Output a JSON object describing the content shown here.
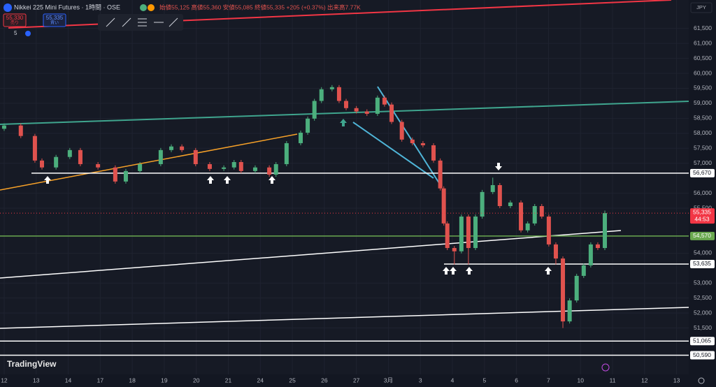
{
  "header": {
    "symbol": "Nikkei 225 Mini Futures · 1時間 · OSE",
    "ohlc": "始値55,125 高値55,360 安値55,085 終値55,335 +205 (+0.37%) 出来高7.77K",
    "sell_price": "55,330",
    "sell_label": "売り",
    "buy_price": "55,335",
    "buy_label": "買い",
    "indicator_count": "5",
    "currency": "JPY",
    "brand": "TradingView"
  },
  "chart_data": {
    "type": "candlestick",
    "up_color": "#4caf7d",
    "down_color": "#e0524e",
    "x": [
      0,
      0.52,
      0.96,
      1.18,
      1.62,
      2.05,
      2.38,
      2.93,
      3.47,
      3.8,
      4.24,
      4.89,
      5.22,
      5.55,
      5.98,
      6.42,
      6.86,
      7.18,
      7.4,
      7.84,
      8.28,
      8.49,
      8.82,
      9.26,
      9.48,
      9.69,
      9.91,
      10.24,
      10.46,
      10.68,
      11,
      11.33,
      11.66,
      11.88,
      12.1,
      12.42,
      12.75,
      13.08,
      13.41,
      13.62,
      13.73,
      13.84,
      14.06,
      14.28,
      14.5,
      14.72,
      14.93,
      15.26,
      15.48,
      15.81,
      16.14,
      16.35,
      16.57,
      16.79,
      17.01,
      17.23,
      17.45,
      17.66,
      17.88,
      18.1,
      18.32,
      18.54,
      18.76
    ],
    "open": [
      58150,
      58260,
      57910,
      57090,
      56860,
      57210,
      57440,
      56970,
      56860,
      56390,
      56740,
      56970,
      57440,
      57560,
      57440,
      56970,
      56810,
      56860,
      57040,
      56740,
      56860,
      56620,
      56970,
      57670,
      58020,
      58490,
      59080,
      59470,
      59540,
      59080,
      58840,
      58730,
      58650,
      59190,
      58960,
      58380,
      57790,
      57670,
      57600,
      57090,
      56160,
      54990,
      54170,
      54060,
      55220,
      54170,
      55220,
      56040,
      56270,
      55570,
      55690,
      54760,
      54990,
      55570,
      55220,
      54290,
      53820,
      51720,
      52420,
      53240,
      53590,
      54290,
      54170
    ],
    "high": [
      58330,
      58330,
      57980,
      57160,
      57280,
      57510,
      57510,
      57040,
      56930,
      56810,
      57040,
      57510,
      57630,
      57630,
      57510,
      57040,
      56930,
      57110,
      57110,
      56930,
      56930,
      57040,
      57740,
      58090,
      58560,
      59150,
      59540,
      59610,
      59610,
      59150,
      58910,
      58800,
      59260,
      59260,
      59030,
      58450,
      57860,
      57740,
      57670,
      57160,
      56230,
      55060,
      54240,
      55290,
      55290,
      55290,
      56110,
      56520,
      56340,
      55760,
      55760,
      55060,
      55640,
      55640,
      55290,
      54360,
      53890,
      52490,
      53310,
      53660,
      54360,
      54360,
      55420
    ],
    "low": [
      58080,
      57840,
      57020,
      56790,
      56790,
      57140,
      56900,
      56790,
      56320,
      56320,
      56670,
      56900,
      57370,
      57370,
      56900,
      56740,
      56740,
      56790,
      56670,
      56670,
      56550,
      56550,
      56900,
      57600,
      57950,
      58420,
      59010,
      59400,
      59010,
      58770,
      58660,
      58580,
      58580,
      58890,
      58310,
      57720,
      57600,
      57530,
      57020,
      56090,
      54920,
      54100,
      53620,
      53990,
      53620,
      54100,
      55150,
      55970,
      55500,
      55500,
      54690,
      54690,
      54920,
      55150,
      54220,
      53620,
      51500,
      51650,
      52350,
      53170,
      53520,
      54100,
      54100
    ],
    "close": [
      58260,
      57910,
      57090,
      56860,
      57210,
      57440,
      56970,
      56860,
      56390,
      56740,
      56970,
      57440,
      57560,
      57440,
      56970,
      56810,
      56860,
      57040,
      56740,
      56860,
      56620,
      56970,
      57670,
      58020,
      58490,
      59080,
      59470,
      59540,
      59080,
      58840,
      58730,
      58650,
      59190,
      58960,
      58380,
      57790,
      57670,
      57600,
      57090,
      56160,
      54990,
      54170,
      54060,
      55220,
      54170,
      55220,
      56040,
      56270,
      55570,
      55690,
      54760,
      54990,
      55570,
      55220,
      54290,
      53820,
      51720,
      52420,
      53240,
      53590,
      54290,
      54170,
      55335
    ],
    "xlim": [
      -0.13,
      21.38
    ],
    "ylim": [
      49950,
      62450
    ],
    "xticks": [
      {
        "value": 0,
        "label": "12"
      },
      {
        "value": 1,
        "label": "13"
      },
      {
        "value": 2,
        "label": "14"
      },
      {
        "value": 3,
        "label": "17"
      },
      {
        "value": 4,
        "label": "18"
      },
      {
        "value": 5,
        "label": "19"
      },
      {
        "value": 6,
        "label": "20"
      },
      {
        "value": 7,
        "label": "21"
      },
      {
        "value": 8,
        "label": "24"
      },
      {
        "value": 9,
        "label": "25"
      },
      {
        "value": 10,
        "label": "26"
      },
      {
        "value": 11,
        "label": "27"
      },
      {
        "value": 12,
        "label": "3月"
      },
      {
        "value": 13,
        "label": "3"
      },
      {
        "value": 14,
        "label": "4"
      },
      {
        "value": 15,
        "label": "5"
      },
      {
        "value": 16,
        "label": "6"
      },
      {
        "value": 17,
        "label": "7"
      },
      {
        "value": 18,
        "label": "10"
      },
      {
        "value": 19,
        "label": "11"
      },
      {
        "value": 20,
        "label": "12"
      },
      {
        "value": 21,
        "label": "13"
      }
    ],
    "yticks": [
      {
        "value": 61500,
        "label": "61,500"
      },
      {
        "value": 61000,
        "label": "61,000"
      },
      {
        "value": 60500,
        "label": "60,500"
      },
      {
        "value": 60000,
        "label": "60,000"
      },
      {
        "value": 59500,
        "label": "59,500"
      },
      {
        "value": 59000,
        "label": "59,000"
      },
      {
        "value": 58500,
        "label": "58,500"
      },
      {
        "value": 58000,
        "label": "58,000"
      },
      {
        "value": 57500,
        "label": "57,500"
      },
      {
        "value": 57000,
        "label": "57,000"
      },
      {
        "value": 56000,
        "label": "56,000"
      },
      {
        "value": 55500,
        "label": "55,500"
      },
      {
        "value": 54000,
        "label": "54,000"
      },
      {
        "value": 53000,
        "label": "53,000"
      },
      {
        "value": 52500,
        "label": "52,500"
      },
      {
        "value": 52000,
        "label": "52,000"
      },
      {
        "value": 51500,
        "label": "51,500"
      }
    ],
    "levels": [
      {
        "value": 56670,
        "label": "56,670",
        "color": "#ffffff"
      },
      {
        "value": 54570,
        "label": "54,570",
        "color": "#6aa84f"
      },
      {
        "value": 53635,
        "label": "53,635",
        "color": "#ffffff"
      },
      {
        "value": 51065,
        "label": "51,065",
        "color": "#ffffff"
      },
      {
        "value": 50590,
        "label": "50,590",
        "color": "#ffffff"
      }
    ],
    "current": {
      "value": 55335,
      "label": "55,335",
      "countdown": "44:53",
      "color": "#f23645"
    }
  }
}
